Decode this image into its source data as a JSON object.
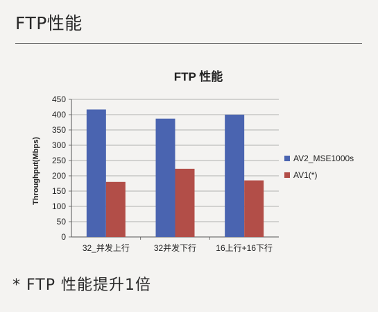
{
  "page": {
    "heading": "FTP性能",
    "footnote": "* FTP  性能提升1倍"
  },
  "chart_data": {
    "type": "bar",
    "title": "FTP 性能",
    "ylabel": "Throughput(Mbps)",
    "xlabel": "",
    "ylim": [
      0,
      450
    ],
    "yticks": [
      0,
      50,
      100,
      150,
      200,
      250,
      300,
      350,
      400,
      450
    ],
    "grid": true,
    "legend_position": "right",
    "categories": [
      "32_并发上行",
      "32并发下行",
      "16上行+16下行"
    ],
    "series": [
      {
        "name": "AV2_MSE1000s",
        "color": "#4a64b0",
        "values": [
          417,
          387,
          400
        ]
      },
      {
        "name": "AV1(*)",
        "color": "#b24e48",
        "values": [
          180,
          223,
          185
        ]
      }
    ]
  }
}
